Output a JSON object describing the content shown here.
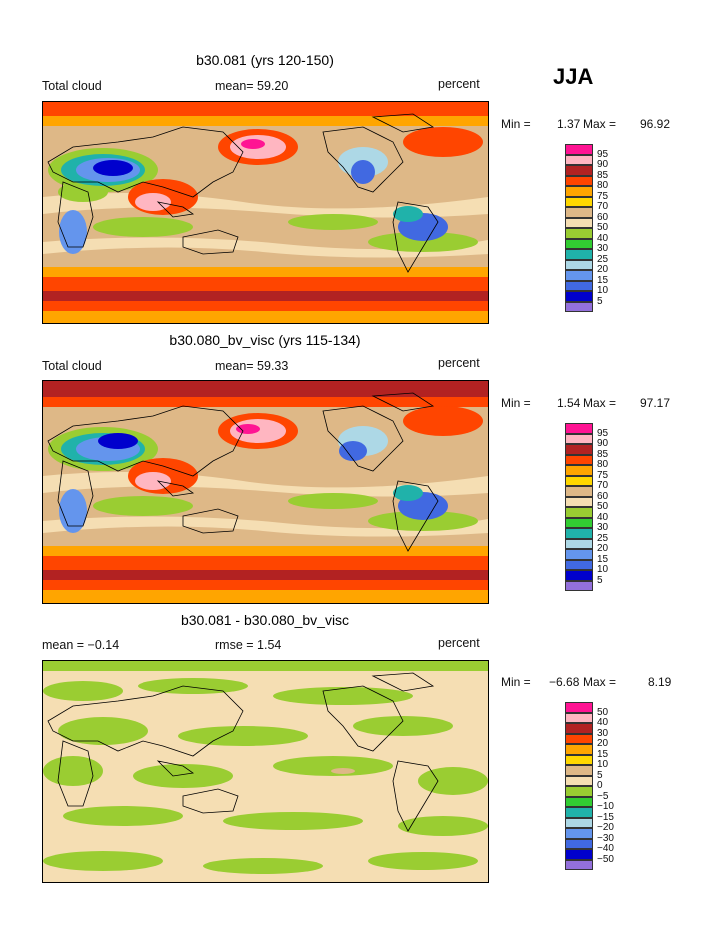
{
  "season": "JJA",
  "panels": [
    {
      "title": "b30.081 (yrs 120-150)",
      "left_label": "Total cloud",
      "center_label": "mean=  59.20",
      "right_label": "percent",
      "min_label": "Min =",
      "min_value": "1.37",
      "max_label": "Max =",
      "max_value": "96.92",
      "legend_labels": [
        "95",
        "90",
        "85",
        "80",
        "75",
        "70",
        "60",
        "50",
        "40",
        "30",
        "25",
        "20",
        "15",
        "10",
        "5"
      ]
    },
    {
      "title": "b30.080_bv_visc (yrs 115-134)",
      "left_label": "Total cloud",
      "center_label": "mean=  59.33",
      "right_label": "percent",
      "min_label": "Min =",
      "min_value": "1.54",
      "max_label": "Max =",
      "max_value": "97.17",
      "legend_labels": [
        "95",
        "90",
        "85",
        "80",
        "75",
        "70",
        "60",
        "50",
        "40",
        "30",
        "25",
        "20",
        "15",
        "10",
        "5"
      ]
    },
    {
      "title": "b30.081 - b30.080_bv_visc",
      "left_label": "mean =  −0.14",
      "center_label": "rmse =    1.54",
      "right_label": "percent",
      "min_label": "Min =",
      "min_value": "−6.68",
      "max_label": "Max =",
      "max_value": "8.19",
      "legend_labels": [
        "50",
        "40",
        "30",
        "20",
        "15",
        "10",
        "5",
        "0",
        "−5",
        "−10",
        "−15",
        "−20",
        "−30",
        "−40",
        "−50"
      ]
    }
  ],
  "legend_colors": [
    "#ff1493",
    "#ffb6c1",
    "#b22222",
    "#ff4500",
    "#ffa500",
    "#ffd700",
    "#deb887",
    "#f5deb3",
    "#9acd32",
    "#32cd32",
    "#20b2aa",
    "#add8e6",
    "#6495ed",
    "#4169e1",
    "#0000cd",
    "#9370db"
  ]
}
